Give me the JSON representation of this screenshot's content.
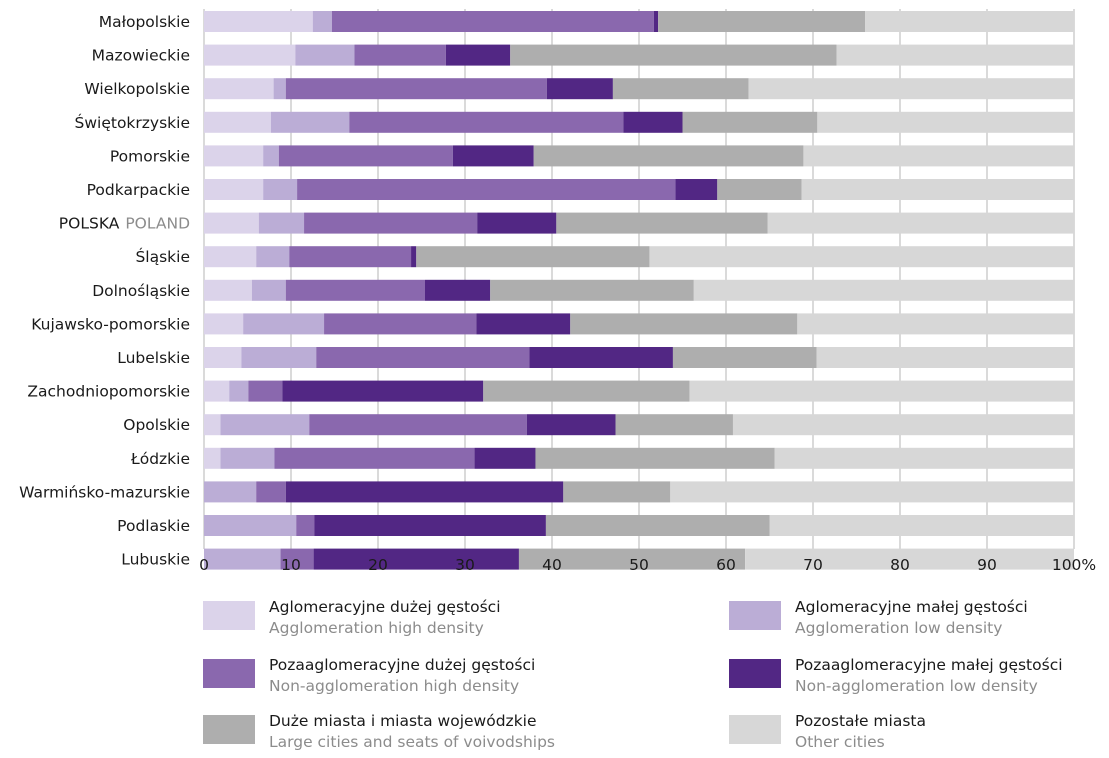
{
  "chart_data": {
    "type": "bar",
    "orientation": "horizontal",
    "stacked": true,
    "categories": [
      "Małopolskie",
      "Mazowieckie",
      "Wielkopolskie",
      "Świętokrzyskie",
      "Pomorskie",
      "Podkarpackie",
      "POLSKA",
      "Śląskie",
      "Dolnośląskie",
      "Kujawsko-pomorskie",
      "Lubelskie",
      "Zachodniopomorskie",
      "Opolskie",
      "Łódzkie",
      "Warmińsko-mazurskie",
      "Podlaskie",
      "Lubuskie"
    ],
    "category_suffix": {
      "POLSKA": "POLAND"
    },
    "series": [
      {
        "name": "Aglomeracyjne dużej gęstości",
        "name_en": "Agglomeration high density",
        "color": "#dbd3ea",
        "values": [
          12.5,
          10.5,
          8.0,
          7.7,
          6.8,
          6.8,
          6.3,
          6.0,
          5.5,
          4.5,
          4.3,
          2.9,
          1.9,
          1.9,
          0,
          0,
          0
        ]
      },
      {
        "name": "Aglomeracyjne małej gęstości",
        "name_en": "Agglomeration low density",
        "color": "#bbadd6",
        "values": [
          2.2,
          6.8,
          1.4,
          9.0,
          1.8,
          3.9,
          5.2,
          3.8,
          3.9,
          9.3,
          8.6,
          2.2,
          10.2,
          6.2,
          6.0,
          10.6,
          8.8
        ]
      },
      {
        "name": "Pozaaglomeracyjne dużej gęstości",
        "name_en": "Non-agglomeration high density",
        "color": "#8a68ae",
        "values": [
          37.0,
          10.5,
          30.0,
          31.5,
          20.0,
          43.5,
          19.9,
          14.0,
          16.0,
          17.5,
          24.5,
          3.9,
          25.0,
          23.0,
          3.4,
          2.1,
          3.8
        ]
      },
      {
        "name": "Pozaaglomeracyjne małej gęstości",
        "name_en": "Non-agglomeration low density",
        "color": "#522784",
        "values": [
          0.5,
          7.4,
          7.6,
          6.8,
          9.3,
          4.8,
          9.1,
          0.6,
          7.5,
          10.8,
          16.5,
          23.1,
          10.2,
          7.0,
          31.9,
          26.6,
          23.6
        ]
      },
      {
        "name": "Duże miasta i miasta wojewódzkie",
        "name_en": "Large cities and seats of voivodships",
        "color": "#aeaeae",
        "values": [
          23.8,
          37.5,
          15.6,
          15.5,
          31.0,
          9.7,
          24.3,
          26.8,
          23.4,
          26.1,
          16.5,
          23.7,
          13.5,
          27.5,
          12.3,
          25.7,
          26.0
        ]
      },
      {
        "name": "Pozostałe miasta",
        "name_en": "Other cities",
        "color": "#d7d7d7",
        "values": [
          24.0,
          27.3,
          37.4,
          29.5,
          31.1,
          31.3,
          35.2,
          48.8,
          43.7,
          31.8,
          29.6,
          44.2,
          39.2,
          34.4,
          46.4,
          35.0,
          37.8
        ]
      }
    ],
    "x_ticks": [
      "0",
      "10",
      "20",
      "30",
      "40",
      "50",
      "60",
      "70",
      "80",
      "90",
      "100%"
    ],
    "xlim": [
      0,
      100
    ],
    "grid": "vertical",
    "legend_position": "bottom"
  }
}
